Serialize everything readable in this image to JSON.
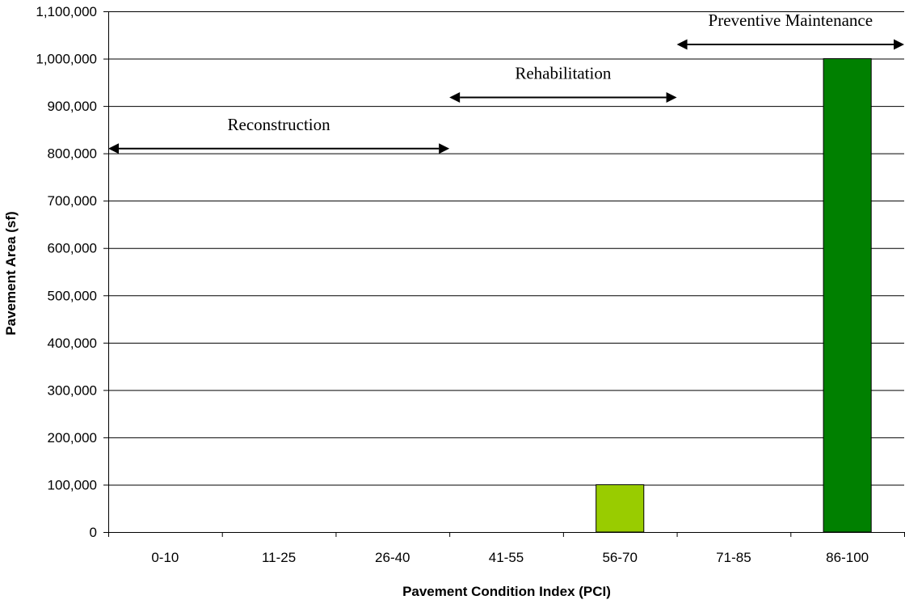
{
  "chart_data": {
    "type": "bar",
    "title": "",
    "xlabel": "Pavement Condition Index (PCI)",
    "ylabel": "Pavement Area (sf)",
    "ylim": [
      0,
      1100000
    ],
    "ytick_step": 100000,
    "grid": true,
    "legend": "none",
    "categories": [
      "0-10",
      "11-25",
      "26-40",
      "41-55",
      "56-70",
      "71-85",
      "86-100"
    ],
    "values": [
      0,
      0,
      0,
      0,
      100000,
      0,
      1000000
    ],
    "bar_colors": [
      "#99cc00",
      "#99cc00",
      "#99cc00",
      "#99cc00",
      "#99cc00",
      "#99cc00",
      "#008000"
    ],
    "y_tick_labels": [
      "0",
      "100,000",
      "200,000",
      "300,000",
      "400,000",
      "500,000",
      "600,000",
      "700,000",
      "800,000",
      "900,000",
      "1,000,000",
      "1,100,000"
    ],
    "annotations": [
      {
        "label": "Reconstruction",
        "from_category": 0,
        "to_category": 3,
        "y": 810000
      },
      {
        "label": "Rehabilitation",
        "from_category": 3,
        "to_category": 5,
        "y": 918000
      },
      {
        "label": "Preventive Maintenance",
        "from_category": 5,
        "to_category": 7,
        "y": 1030000
      }
    ]
  }
}
